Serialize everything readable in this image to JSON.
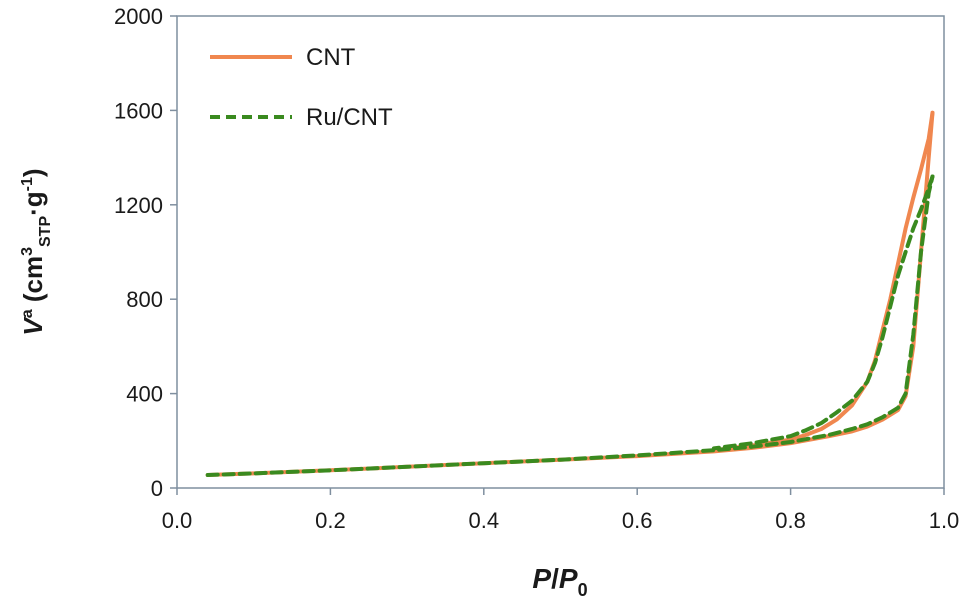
{
  "chart_data": {
    "type": "line",
    "xlabel": {
      "main": "P",
      "sep": "/",
      "main2": "P",
      "sub": "0"
    },
    "ylabel": {
      "main": "V",
      "sup": "a",
      "open": " (cm",
      "sup2": "3",
      "sub": "STP",
      "mid": "·g",
      "sup3": "-1",
      "close": ")"
    },
    "xlim": [
      0.0,
      1.0
    ],
    "ylim": [
      0,
      2000
    ],
    "xticks": [
      "0.0",
      "0.2",
      "0.4",
      "0.6",
      "0.8",
      "1.0"
    ],
    "yticks": [
      "0",
      "400",
      "800",
      "1200",
      "1600",
      "2000"
    ],
    "grid": false,
    "legend_position": "top-left",
    "series": [
      {
        "name": "CNT",
        "color": "#f0874f",
        "style": "solid",
        "adsorption": {
          "x": [
            0.04,
            0.1,
            0.2,
            0.3,
            0.4,
            0.5,
            0.6,
            0.7,
            0.75,
            0.8,
            0.85,
            0.88,
            0.9,
            0.92,
            0.94,
            0.95,
            0.96,
            0.97,
            0.98,
            0.985
          ],
          "y": [
            55,
            62,
            75,
            90,
            105,
            120,
            135,
            155,
            170,
            190,
            220,
            240,
            260,
            290,
            330,
            390,
            600,
            1000,
            1400,
            1590
          ]
        },
        "desorption": {
          "x": [
            0.985,
            0.98,
            0.97,
            0.96,
            0.95,
            0.94,
            0.93,
            0.92,
            0.91,
            0.9,
            0.88,
            0.86,
            0.84,
            0.82,
            0.8,
            0.75,
            0.7
          ],
          "y": [
            1590,
            1480,
            1350,
            1230,
            1100,
            950,
            800,
            670,
            540,
            450,
            350,
            290,
            250,
            225,
            205,
            180,
            160
          ]
        }
      },
      {
        "name": "Ru/CNT",
        "color": "#3a8a1f",
        "style": "dashed",
        "adsorption": {
          "x": [
            0.04,
            0.1,
            0.2,
            0.3,
            0.4,
            0.5,
            0.6,
            0.7,
            0.75,
            0.8,
            0.85,
            0.88,
            0.9,
            0.92,
            0.94,
            0.95,
            0.96,
            0.97,
            0.98,
            0.985
          ],
          "y": [
            55,
            62,
            75,
            90,
            105,
            120,
            138,
            160,
            175,
            195,
            225,
            250,
            270,
            300,
            340,
            400,
            650,
            1000,
            1250,
            1320
          ]
        },
        "desorption": {
          "x": [
            0.985,
            0.98,
            0.97,
            0.96,
            0.95,
            0.94,
            0.93,
            0.92,
            0.91,
            0.9,
            0.88,
            0.86,
            0.84,
            0.82,
            0.8,
            0.75,
            0.7
          ],
          "y": [
            1320,
            1270,
            1180,
            1100,
            1000,
            900,
            770,
            640,
            530,
            450,
            370,
            320,
            275,
            245,
            220,
            190,
            168
          ]
        }
      }
    ]
  }
}
